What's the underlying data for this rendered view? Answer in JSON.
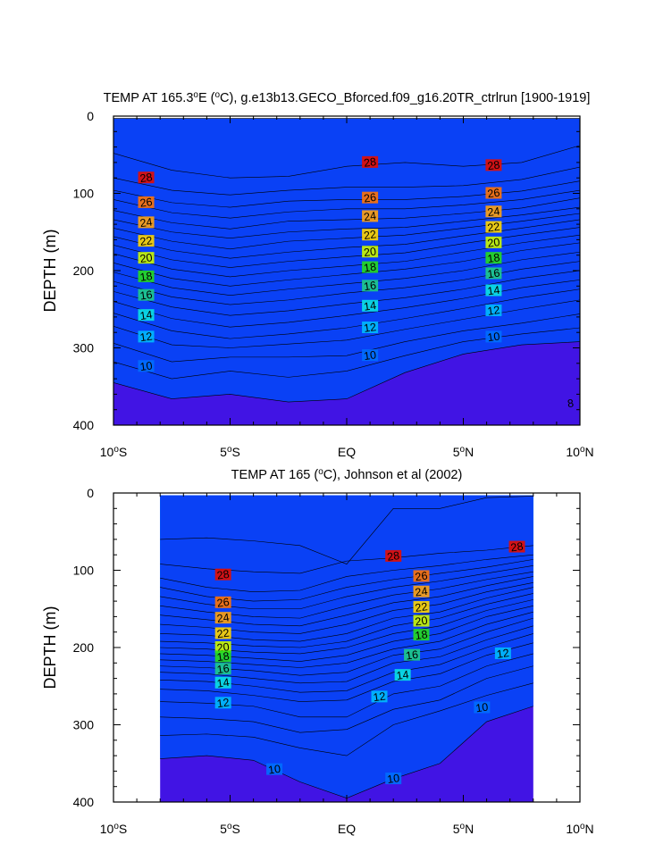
{
  "chart_data": [
    {
      "type": "contour",
      "title": "TEMP AT 165.3°E (°C), g.e13b13.GECO_Bforced.f09_g16.20TR_ctrlrun [1900-1919]",
      "title_parts": {
        "pre": "TEMP AT 165.3",
        "deg1": "o",
        "mid": "E (",
        "deg2": "o",
        "post": "C), g.e13b13.GECO_Bforced.f09_g16.20TR_ctrlrun [1900-1919]"
      },
      "xlabel": "",
      "ylabel": "DEPTH (m)",
      "xlim": [
        -10,
        10
      ],
      "ylim": [
        0,
        400
      ],
      "x_ticks": [
        {
          "v": -10,
          "a": "10",
          "b": "S"
        },
        {
          "v": -5,
          "a": "5",
          "b": "S"
        },
        {
          "v": 0,
          "a": "EQ",
          "b": ""
        },
        {
          "v": 5,
          "a": "5",
          "b": "N"
        },
        {
          "v": 10,
          "a": "10",
          "b": "N"
        }
      ],
      "y_ticks": [
        "0",
        "100",
        "200",
        "300",
        "400"
      ],
      "data_extent": [
        -10,
        10
      ],
      "levels": [
        9,
        10,
        11,
        12,
        13,
        14,
        15,
        16,
        17,
        18,
        19,
        20,
        21,
        22,
        23,
        24,
        25,
        26,
        27,
        28,
        29
      ],
      "x_nodes": [
        -10,
        -7.5,
        -5,
        -2.5,
        0,
        2.5,
        5,
        7.5,
        10
      ],
      "isotherms": [
        {
          "t": 29,
          "depth": [
            3,
            3,
            3,
            3,
            3,
            3,
            3,
            3,
            3
          ]
        },
        {
          "t": 28,
          "depth": [
            48,
            70,
            80,
            78,
            65,
            60,
            65,
            60,
            38
          ]
        },
        {
          "t": 27,
          "depth": [
            80,
            96,
            102,
            96,
            92,
            92,
            90,
            82,
            66
          ]
        },
        {
          "t": 26,
          "depth": [
            96,
            112,
            118,
            110,
            108,
            108,
            104,
            97,
            84
          ]
        },
        {
          "t": 25,
          "depth": [
            108,
            125,
            132,
            124,
            120,
            120,
            115,
            108,
            96
          ]
        },
        {
          "t": 24,
          "depth": [
            122,
            138,
            146,
            136,
            134,
            132,
            126,
            119,
            106
          ]
        },
        {
          "t": 23,
          "depth": [
            134,
            150,
            158,
            150,
            146,
            144,
            136,
            128,
            118
          ]
        },
        {
          "t": 22,
          "depth": [
            145,
            162,
            172,
            162,
            158,
            154,
            145,
            136,
            126
          ]
        },
        {
          "t": 21,
          "depth": [
            156,
            174,
            184,
            176,
            170,
            166,
            155,
            145,
            134
          ]
        },
        {
          "t": 20,
          "depth": [
            167,
            186,
            196,
            188,
            182,
            177,
            165,
            154,
            144
          ]
        },
        {
          "t": 19,
          "depth": [
            178,
            198,
            208,
            200,
            194,
            188,
            176,
            164,
            154
          ]
        },
        {
          "t": 18,
          "depth": [
            190,
            210,
            220,
            212,
            205,
            198,
            188,
            174,
            164
          ]
        },
        {
          "t": 17,
          "depth": [
            202,
            222,
            232,
            224,
            217,
            210,
            200,
            186,
            176
          ]
        },
        {
          "t": 16,
          "depth": [
            214,
            234,
            244,
            238,
            229,
            222,
            212,
            198,
            188
          ]
        },
        {
          "t": 15,
          "depth": [
            227,
            247,
            258,
            252,
            243,
            235,
            224,
            210,
            200
          ]
        },
        {
          "t": 14,
          "depth": [
            240,
            262,
            273,
            267,
            258,
            248,
            236,
            222,
            212
          ]
        },
        {
          "t": 13,
          "depth": [
            255,
            278,
            288,
            282,
            274,
            262,
            249,
            235,
            224
          ]
        },
        {
          "t": 12,
          "depth": [
            272,
            296,
            300,
            295,
            290,
            276,
            263,
            250,
            238
          ]
        },
        {
          "t": 11,
          "depth": [
            294,
            318,
            312,
            312,
            310,
            292,
            278,
            268,
            256
          ]
        },
        {
          "t": 10,
          "depth": [
            318,
            340,
            330,
            338,
            330,
            310,
            292,
            282,
            274
          ]
        },
        {
          "t": 9,
          "depth": [
            345,
            366,
            360,
            370,
            366,
            332,
            308,
            296,
            292
          ]
        }
      ],
      "contour_labels": [
        {
          "t": "28",
          "x": -8.6,
          "d": 80
        },
        {
          "t": "28",
          "x": 1.0,
          "d": 60
        },
        {
          "t": "28",
          "x": 6.3,
          "d": 64
        },
        {
          "t": "26",
          "x": -8.6,
          "d": 112
        },
        {
          "t": "26",
          "x": 1.0,
          "d": 106
        },
        {
          "t": "26",
          "x": 6.3,
          "d": 100
        },
        {
          "t": "24",
          "x": -8.6,
          "d": 138
        },
        {
          "t": "24",
          "x": 1.0,
          "d": 130
        },
        {
          "t": "24",
          "x": 6.3,
          "d": 124
        },
        {
          "t": "22",
          "x": -8.6,
          "d": 162
        },
        {
          "t": "22",
          "x": 1.0,
          "d": 154
        },
        {
          "t": "22",
          "x": 6.3,
          "d": 144
        },
        {
          "t": "20",
          "x": -8.6,
          "d": 184
        },
        {
          "t": "20",
          "x": 1.0,
          "d": 176
        },
        {
          "t": "20",
          "x": 6.3,
          "d": 164
        },
        {
          "t": "18",
          "x": -8.6,
          "d": 208
        },
        {
          "t": "18",
          "x": 1.0,
          "d": 196
        },
        {
          "t": "18",
          "x": 6.3,
          "d": 184
        },
        {
          "t": "16",
          "x": -8.6,
          "d": 232
        },
        {
          "t": "16",
          "x": 1.0,
          "d": 220
        },
        {
          "t": "16",
          "x": 6.3,
          "d": 204
        },
        {
          "t": "14",
          "x": -8.6,
          "d": 258
        },
        {
          "t": "14",
          "x": 1.0,
          "d": 246
        },
        {
          "t": "14",
          "x": 6.3,
          "d": 226
        },
        {
          "t": "12",
          "x": -8.6,
          "d": 286
        },
        {
          "t": "12",
          "x": 1.0,
          "d": 274
        },
        {
          "t": "12",
          "x": 6.3,
          "d": 252
        },
        {
          "t": "10",
          "x": -8.6,
          "d": 324
        },
        {
          "t": "10",
          "x": 1.0,
          "d": 310
        },
        {
          "t": "10",
          "x": 6.3,
          "d": 286
        },
        {
          "t": "8",
          "x": 9.6,
          "d": 372
        }
      ]
    },
    {
      "type": "contour",
      "title": "TEMP AT 165 (°C), Johnson et al (2002)",
      "title_parts": {
        "pre": "TEMP AT 165 (",
        "deg1": "o",
        "mid": "C), Johnson et al (2002)",
        "deg2": "",
        "post": ""
      },
      "xlabel": "",
      "ylabel": "DEPTH (m)",
      "xlim": [
        -10,
        10
      ],
      "ylim": [
        0,
        400
      ],
      "x_ticks": [
        {
          "v": -10,
          "a": "10",
          "b": "S"
        },
        {
          "v": -5,
          "a": "5",
          "b": "S"
        },
        {
          "v": 0,
          "a": "EQ",
          "b": ""
        },
        {
          "v": 5,
          "a": "5",
          "b": "N"
        },
        {
          "v": 10,
          "a": "10",
          "b": "N"
        }
      ],
      "y_ticks": [
        "0",
        "100",
        "200",
        "300",
        "400"
      ],
      "data_extent": [
        -8,
        8
      ],
      "levels": [
        9,
        10,
        11,
        12,
        13,
        14,
        15,
        16,
        17,
        18,
        19,
        20,
        21,
        22,
        23,
        24,
        25,
        26,
        27,
        28,
        29
      ],
      "x_nodes": [
        -8,
        -6,
        -4,
        -2,
        0,
        2,
        4,
        6,
        8
      ],
      "isotherms": [
        {
          "t": 29,
          "depth": [
            60,
            58,
            62,
            68,
            92,
            20,
            20,
            6,
            4
          ]
        },
        {
          "t": 28,
          "depth": [
            92,
            98,
            102,
            104,
            88,
            84,
            78,
            74,
            68
          ]
        },
        {
          "t": 27,
          "depth": [
            110,
            122,
            128,
            126,
            108,
            100,
            94,
            86,
            80
          ]
        },
        {
          "t": 26,
          "depth": [
            122,
            134,
            140,
            138,
            122,
            112,
            104,
            96,
            86
          ]
        },
        {
          "t": 25,
          "depth": [
            134,
            144,
            150,
            150,
            134,
            122,
            114,
            104,
            94
          ]
        },
        {
          "t": 24,
          "depth": [
            146,
            154,
            160,
            162,
            146,
            132,
            124,
            112,
            102
          ]
        },
        {
          "t": 23,
          "depth": [
            158,
            164,
            170,
            172,
            158,
            142,
            134,
            120,
            108
          ]
        },
        {
          "t": 22,
          "depth": [
            170,
            174,
            180,
            182,
            170,
            152,
            144,
            128,
            116
          ]
        },
        {
          "t": 21,
          "depth": [
            182,
            184,
            190,
            192,
            182,
            162,
            154,
            136,
            122
          ]
        },
        {
          "t": 20,
          "depth": [
            192,
            194,
            198,
            200,
            192,
            172,
            162,
            144,
            130
          ]
        },
        {
          "t": 19,
          "depth": [
            200,
            202,
            206,
            208,
            200,
            182,
            172,
            152,
            138
          ]
        },
        {
          "t": 18,
          "depth": [
            208,
            210,
            214,
            218,
            210,
            192,
            182,
            160,
            146
          ]
        },
        {
          "t": 17,
          "depth": [
            216,
            218,
            222,
            226,
            220,
            202,
            192,
            170,
            154
          ]
        },
        {
          "t": 16,
          "depth": [
            224,
            226,
            230,
            236,
            232,
            210,
            202,
            180,
            162
          ]
        },
        {
          "t": 15,
          "depth": [
            232,
            234,
            240,
            246,
            244,
            220,
            212,
            190,
            172
          ]
        },
        {
          "t": 14,
          "depth": [
            242,
            244,
            250,
            258,
            256,
            232,
            222,
            200,
            182
          ]
        },
        {
          "t": 13,
          "depth": [
            254,
            256,
            262,
            270,
            268,
            244,
            234,
            210,
            194
          ]
        },
        {
          "t": 12,
          "depth": [
            270,
            272,
            276,
            290,
            290,
            260,
            250,
            224,
            208
          ]
        },
        {
          "t": 11,
          "depth": [
            290,
            292,
            296,
            310,
            306,
            280,
            268,
            240,
            224
          ]
        },
        {
          "t": 10,
          "depth": [
            314,
            312,
            316,
            330,
            340,
            300,
            282,
            262,
            246
          ]
        },
        {
          "t": 9,
          "depth": [
            344,
            340,
            346,
            374,
            395,
            370,
            350,
            296,
            276
          ]
        }
      ],
      "contour_labels": [
        {
          "t": "28",
          "x": -5.3,
          "d": 106
        },
        {
          "t": "28",
          "x": 2.0,
          "d": 82
        },
        {
          "t": "28",
          "x": 7.3,
          "d": 70
        },
        {
          "t": "26",
          "x": -5.3,
          "d": 142
        },
        {
          "t": "26",
          "x": 3.2,
          "d": 108
        },
        {
          "t": "24",
          "x": -5.3,
          "d": 162
        },
        {
          "t": "24",
          "x": 3.2,
          "d": 128
        },
        {
          "t": "22",
          "x": -5.3,
          "d": 182
        },
        {
          "t": "22",
          "x": 3.2,
          "d": 148
        },
        {
          "t": "20",
          "x": -5.3,
          "d": 200
        },
        {
          "t": "20",
          "x": 3.2,
          "d": 166
        },
        {
          "t": "18",
          "x": -5.3,
          "d": 212
        },
        {
          "t": "18",
          "x": 3.2,
          "d": 184
        },
        {
          "t": "16",
          "x": -5.3,
          "d": 228
        },
        {
          "t": "16",
          "x": 2.8,
          "d": 210
        },
        {
          "t": "14",
          "x": -5.3,
          "d": 246
        },
        {
          "t": "14",
          "x": 2.4,
          "d": 236
        },
        {
          "t": "12",
          "x": -5.3,
          "d": 272
        },
        {
          "t": "12",
          "x": 1.4,
          "d": 264
        },
        {
          "t": "12",
          "x": 6.7,
          "d": 208
        },
        {
          "t": "10",
          "x": -3.1,
          "d": 358
        },
        {
          "t": "10",
          "x": 2.0,
          "d": 370
        },
        {
          "t": "10",
          "x": 5.8,
          "d": 278
        }
      ]
    }
  ]
}
